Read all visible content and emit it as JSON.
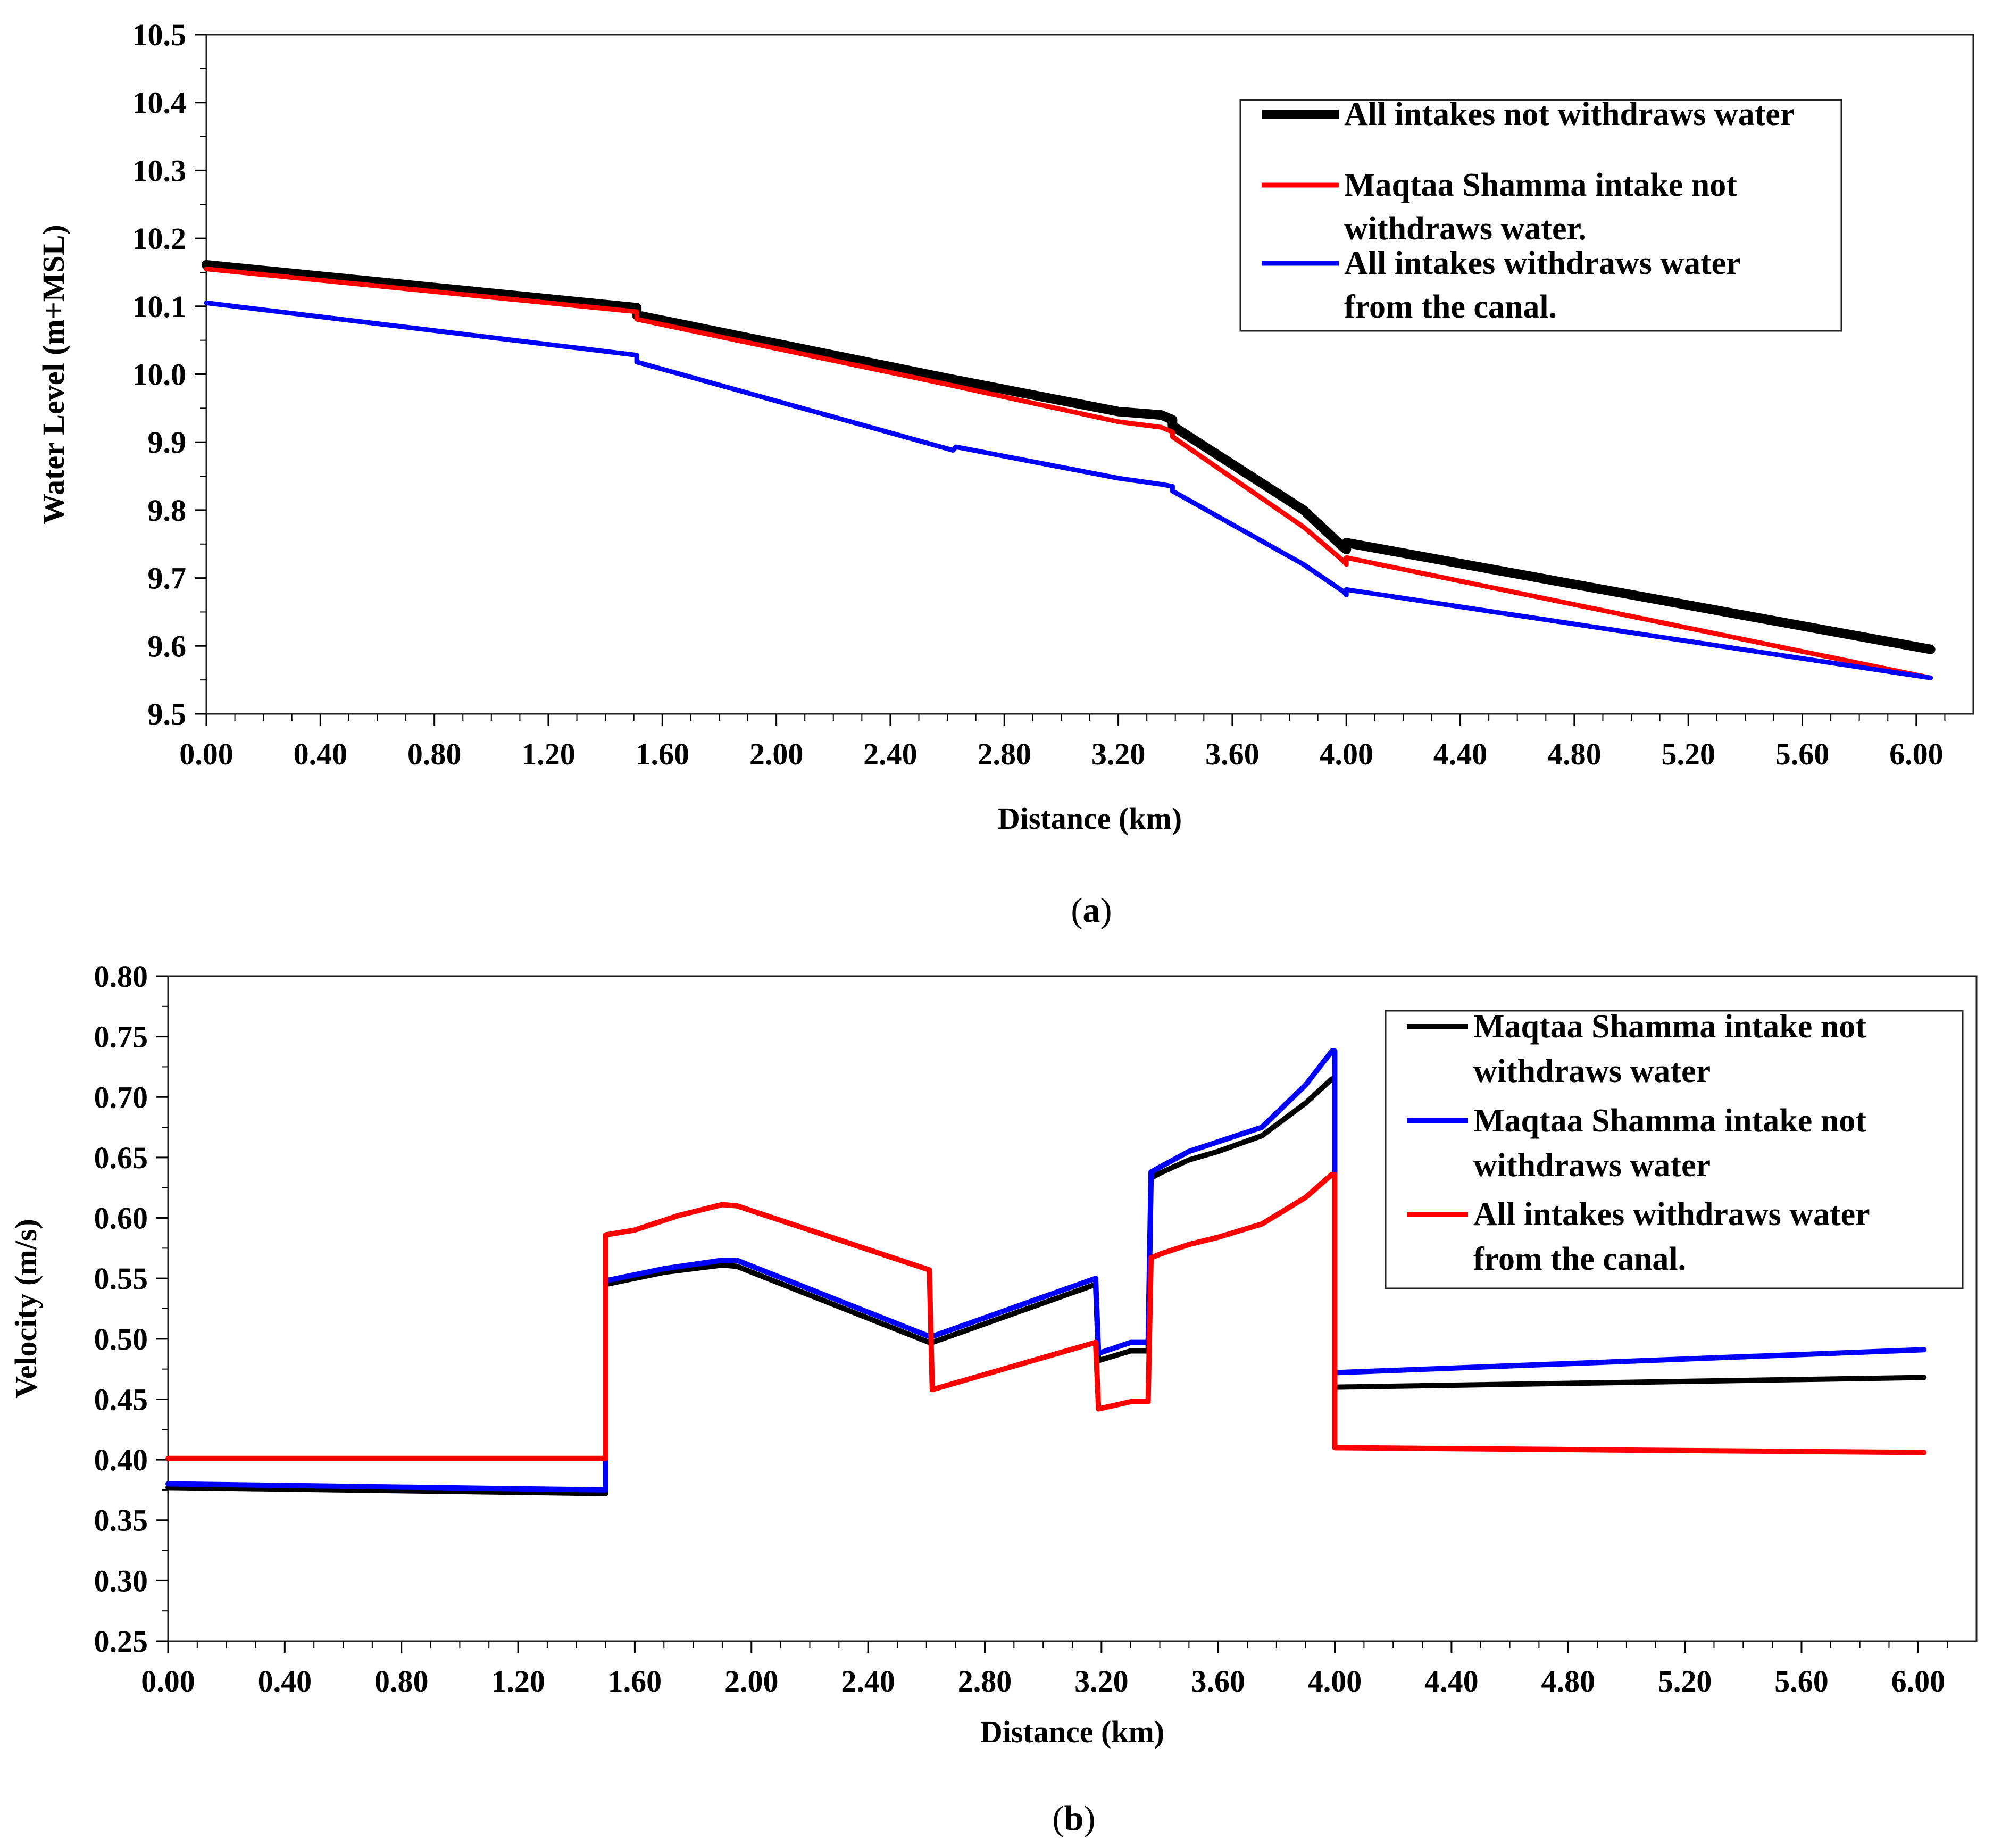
{
  "chart_data": [
    {
      "type": "line",
      "panel": "a",
      "caption_label": "a",
      "xlabel": "Distance (km)",
      "ylabel": "Water Level (m+MSL)",
      "xlim": [
        0.0,
        6.2
      ],
      "ylim": [
        9.5,
        10.5
      ],
      "x_ticks": [
        "0.00",
        "0.40",
        "0.80",
        "1.20",
        "1.60",
        "2.00",
        "2.40",
        "2.80",
        "3.20",
        "3.60",
        "4.00",
        "4.40",
        "4.80",
        "5.20",
        "5.60",
        "6.00"
      ],
      "y_ticks": [
        "9.5",
        "9.6",
        "9.7",
        "9.8",
        "9.9",
        "10.0",
        "10.1",
        "10.2",
        "10.3",
        "10.4",
        "10.5"
      ],
      "legend_position": "top-right",
      "series": [
        {
          "name": "All intakes not withdraws water",
          "legend_lines": [
            "All intakes not withdraws water"
          ],
          "color": "#000000",
          "x": [
            0.0,
            1.51,
            1.51,
            2.6,
            3.2,
            3.35,
            3.39,
            3.39,
            3.85,
            3.99,
            4.0,
            4.0,
            6.05
          ],
          "y": [
            10.161,
            10.098,
            10.087,
            9.994,
            9.945,
            9.94,
            9.933,
            9.924,
            9.8,
            9.745,
            9.742,
            9.752,
            9.595
          ]
        },
        {
          "name": "Maqtaa Shamma intake not withdraws water.",
          "legend_lines": [
            "Maqtaa Shamma intake not",
            "withdraws water."
          ],
          "color": "#ff0000",
          "x": [
            0.0,
            1.51,
            1.51,
            2.6,
            3.2,
            3.35,
            3.39,
            3.39,
            3.85,
            3.99,
            4.0,
            4.0,
            6.05
          ],
          "y": [
            10.155,
            10.092,
            10.081,
            9.985,
            9.93,
            9.922,
            9.915,
            9.908,
            9.775,
            9.725,
            9.72,
            9.73,
            9.553
          ]
        },
        {
          "name": "All intakes withdraws water from the canal.",
          "legend_lines": [
            "All intakes withdraws water",
            "from the canal."
          ],
          "color": "#0000ff",
          "x": [
            0.0,
            1.51,
            1.51,
            2.62,
            2.63,
            3.2,
            3.35,
            3.39,
            3.39,
            3.85,
            3.99,
            4.0,
            4.0,
            6.05
          ],
          "y": [
            10.105,
            10.028,
            10.018,
            9.888,
            9.893,
            9.847,
            9.838,
            9.835,
            9.828,
            9.72,
            9.68,
            9.675,
            9.683,
            9.553
          ]
        }
      ]
    },
    {
      "type": "line",
      "panel": "b",
      "caption_label": "b",
      "xlabel": "Distance (km)",
      "ylabel": "Velocity (m/s)",
      "xlim": [
        0.0,
        6.2
      ],
      "ylim": [
        0.25,
        0.8
      ],
      "x_ticks": [
        "0.00",
        "0.40",
        "0.80",
        "1.20",
        "1.60",
        "2.00",
        "2.40",
        "2.80",
        "3.20",
        "3.60",
        "4.00",
        "4.40",
        "4.80",
        "5.20",
        "5.60",
        "6.00"
      ],
      "y_ticks": [
        "0.25",
        "0.30",
        "0.35",
        "0.40",
        "0.45",
        "0.50",
        "0.55",
        "0.60",
        "0.65",
        "0.70",
        "0.75",
        "0.80"
      ],
      "legend_position": "top-right",
      "series": [
        {
          "name": "Maqtaa Shamma intake not withdraws water",
          "legend_lines": [
            "Maqtaa Shamma intake not",
            "withdraws water"
          ],
          "color": "#000000",
          "x": [
            0.0,
            1.5,
            1.5,
            1.7,
            1.9,
            1.95,
            2.61,
            2.62,
            3.18,
            3.19,
            3.3,
            3.36,
            3.37,
            3.4,
            3.5,
            3.6,
            3.75,
            3.9,
            3.99,
            4.0,
            4.0,
            6.02
          ],
          "y": [
            0.377,
            0.372,
            0.545,
            0.555,
            0.561,
            0.56,
            0.497,
            0.497,
            0.545,
            0.482,
            0.49,
            0.49,
            0.633,
            0.637,
            0.648,
            0.655,
            0.668,
            0.695,
            0.715,
            0.715,
            0.46,
            0.468
          ]
        },
        {
          "name": "Maqtaa Shamma intake not withdraws water",
          "legend_lines": [
            "Maqtaa Shamma intake not",
            "withdraws water"
          ],
          "color": "#0000ff",
          "x": [
            0.0,
            1.5,
            1.5,
            1.7,
            1.9,
            1.95,
            2.61,
            2.62,
            3.18,
            3.19,
            3.3,
            3.36,
            3.37,
            3.4,
            3.5,
            3.6,
            3.75,
            3.9,
            3.99,
            4.0,
            4.0,
            6.02
          ],
          "y": [
            0.38,
            0.375,
            0.548,
            0.558,
            0.565,
            0.565,
            0.502,
            0.502,
            0.55,
            0.488,
            0.497,
            0.497,
            0.638,
            0.642,
            0.655,
            0.663,
            0.675,
            0.71,
            0.738,
            0.738,
            0.472,
            0.491
          ]
        },
        {
          "name": "All intakes withdraws water from the canal.",
          "legend_lines": [
            "All intakes withdraws water",
            "from the canal."
          ],
          "color": "#ff0000",
          "x": [
            0.0,
            1.5,
            1.5,
            1.6,
            1.75,
            1.9,
            1.95,
            2.61,
            2.62,
            3.18,
            3.19,
            3.3,
            3.36,
            3.37,
            3.4,
            3.5,
            3.6,
            3.75,
            3.9,
            3.99,
            4.0,
            4.0,
            6.02
          ],
          "y": [
            0.401,
            0.401,
            0.586,
            0.59,
            0.602,
            0.611,
            0.61,
            0.557,
            0.458,
            0.497,
            0.442,
            0.448,
            0.448,
            0.567,
            0.57,
            0.578,
            0.584,
            0.595,
            0.617,
            0.636,
            0.636,
            0.41,
            0.406
          ]
        }
      ]
    }
  ]
}
